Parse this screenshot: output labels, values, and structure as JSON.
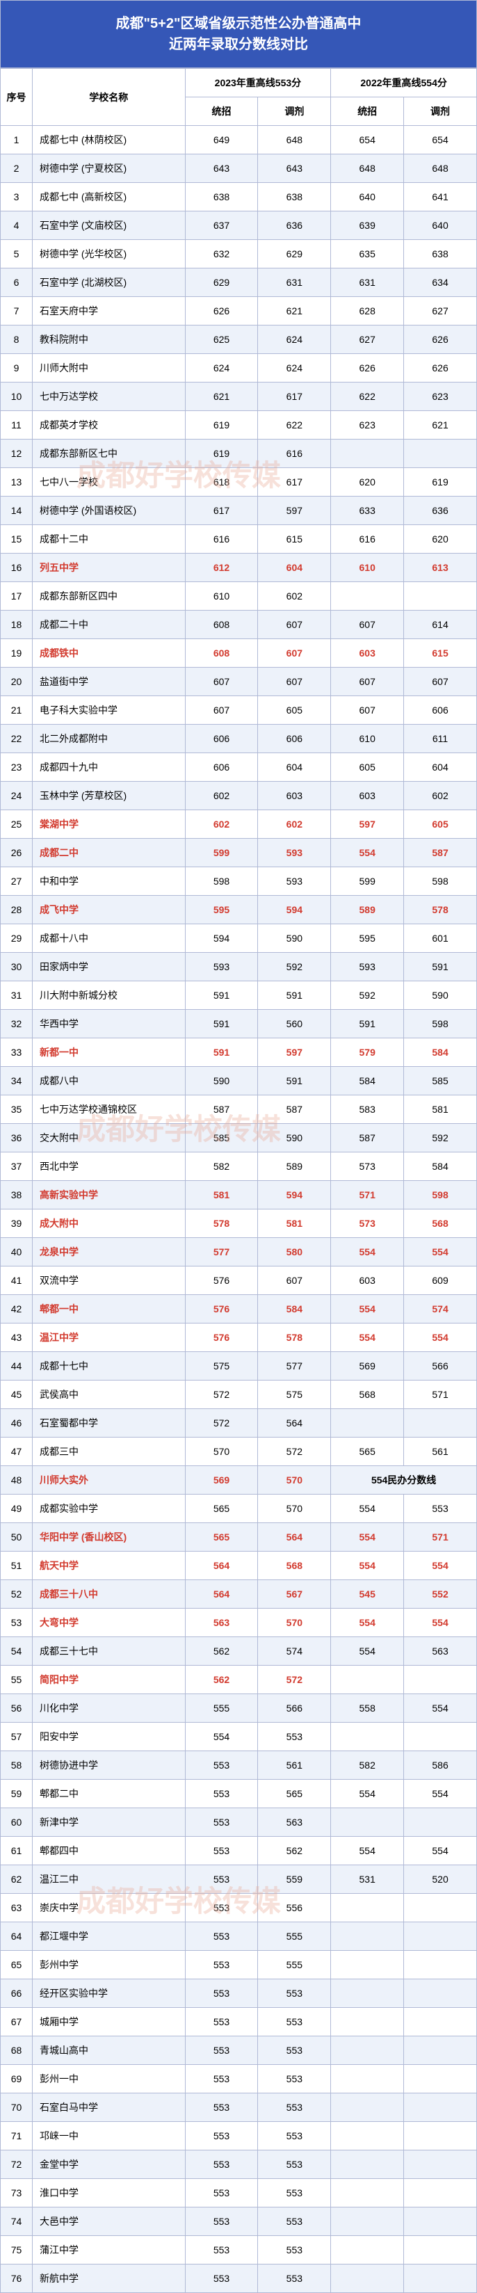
{
  "title_line1": "成都\"5+2\"区域省级示范性公办普通高中",
  "title_line2": "近两年录取分数线对比",
  "headers": {
    "idx": "序号",
    "name": "学校名称",
    "year2023": "2023年重高线553分",
    "year2022": "2022年重高线554分",
    "tongzhao": "统招",
    "tiaoji": "调剂"
  },
  "watermark": "成都好学校传媒",
  "merged_note": "554民办分数线",
  "rows": [
    {
      "i": 1,
      "n": "成都七中 (林荫校区)",
      "a": "649",
      "b": "648",
      "c": "654",
      "d": "654"
    },
    {
      "i": 2,
      "n": "树德中学 (宁夏校区)",
      "a": "643",
      "b": "643",
      "c": "648",
      "d": "648"
    },
    {
      "i": 3,
      "n": "成都七中 (高新校区)",
      "a": "638",
      "b": "638",
      "c": "640",
      "d": "641"
    },
    {
      "i": 4,
      "n": "石室中学 (文庙校区)",
      "a": "637",
      "b": "636",
      "c": "639",
      "d": "640"
    },
    {
      "i": 5,
      "n": "树德中学 (光华校区)",
      "a": "632",
      "b": "629",
      "c": "635",
      "d": "638"
    },
    {
      "i": 6,
      "n": "石室中学 (北湖校区)",
      "a": "629",
      "b": "631",
      "c": "631",
      "d": "634"
    },
    {
      "i": 7,
      "n": "石室天府中学",
      "a": "626",
      "b": "621",
      "c": "628",
      "d": "627"
    },
    {
      "i": 8,
      "n": "教科院附中",
      "a": "625",
      "b": "624",
      "c": "627",
      "d": "626"
    },
    {
      "i": 9,
      "n": "川师大附中",
      "a": "624",
      "b": "624",
      "c": "626",
      "d": "626"
    },
    {
      "i": 10,
      "n": "七中万达学校",
      "a": "621",
      "b": "617",
      "c": "622",
      "d": "623"
    },
    {
      "i": 11,
      "n": "成都英才学校",
      "a": "619",
      "b": "622",
      "c": "623",
      "d": "621"
    },
    {
      "i": 12,
      "n": "成都东部新区七中",
      "a": "619",
      "b": "616",
      "c": "",
      "d": ""
    },
    {
      "i": 13,
      "n": "七中八一学校",
      "a": "618",
      "b": "617",
      "c": "620",
      "d": "619"
    },
    {
      "i": 14,
      "n": "树德中学 (外国语校区)",
      "a": "617",
      "b": "597",
      "c": "633",
      "d": "636"
    },
    {
      "i": 15,
      "n": "成都十二中",
      "a": "616",
      "b": "615",
      "c": "616",
      "d": "620"
    },
    {
      "i": 16,
      "n": "列五中学",
      "a": "612",
      "b": "604",
      "c": "610",
      "d": "613",
      "red": true
    },
    {
      "i": 17,
      "n": "成都东部新区四中",
      "a": "610",
      "b": "602",
      "c": "",
      "d": ""
    },
    {
      "i": 18,
      "n": "成都二十中",
      "a": "608",
      "b": "607",
      "c": "607",
      "d": "614"
    },
    {
      "i": 19,
      "n": "成都铁中",
      "a": "608",
      "b": "607",
      "c": "603",
      "d": "615",
      "red": true
    },
    {
      "i": 20,
      "n": "盐道街中学",
      "a": "607",
      "b": "607",
      "c": "607",
      "d": "607"
    },
    {
      "i": 21,
      "n": "电子科大实验中学",
      "a": "607",
      "b": "605",
      "c": "607",
      "d": "606"
    },
    {
      "i": 22,
      "n": "北二外成都附中",
      "a": "606",
      "b": "606",
      "c": "610",
      "d": "611"
    },
    {
      "i": 23,
      "n": "成都四十九中",
      "a": "606",
      "b": "604",
      "c": "605",
      "d": "604"
    },
    {
      "i": 24,
      "n": "玉林中学 (芳草校区)",
      "a": "602",
      "b": "603",
      "c": "603",
      "d": "602"
    },
    {
      "i": 25,
      "n": "棠湖中学",
      "a": "602",
      "b": "602",
      "c": "597",
      "d": "605",
      "red": true
    },
    {
      "i": 26,
      "n": "成都二中",
      "a": "599",
      "b": "593",
      "c": "554",
      "d": "587",
      "red": true
    },
    {
      "i": 27,
      "n": "中和中学",
      "a": "598",
      "b": "593",
      "c": "599",
      "d": "598"
    },
    {
      "i": 28,
      "n": "成飞中学",
      "a": "595",
      "b": "594",
      "c": "589",
      "d": "578",
      "red": true
    },
    {
      "i": 29,
      "n": "成都十八中",
      "a": "594",
      "b": "590",
      "c": "595",
      "d": "601"
    },
    {
      "i": 30,
      "n": "田家炳中学",
      "a": "593",
      "b": "592",
      "c": "593",
      "d": "591"
    },
    {
      "i": 31,
      "n": "川大附中新城分校",
      "a": "591",
      "b": "591",
      "c": "592",
      "d": "590"
    },
    {
      "i": 32,
      "n": "华西中学",
      "a": "591",
      "b": "560",
      "c": "591",
      "d": "598"
    },
    {
      "i": 33,
      "n": "新都一中",
      "a": "591",
      "b": "597",
      "c": "579",
      "d": "584",
      "red": true
    },
    {
      "i": 34,
      "n": "成都八中",
      "a": "590",
      "b": "591",
      "c": "584",
      "d": "585"
    },
    {
      "i": 35,
      "n": "七中万达学校通锦校区",
      "a": "587",
      "b": "587",
      "c": "583",
      "d": "581"
    },
    {
      "i": 36,
      "n": "交大附中",
      "a": "585",
      "b": "590",
      "c": "587",
      "d": "592"
    },
    {
      "i": 37,
      "n": "西北中学",
      "a": "582",
      "b": "589",
      "c": "573",
      "d": "584"
    },
    {
      "i": 38,
      "n": "高新实验中学",
      "a": "581",
      "b": "594",
      "c": "571",
      "d": "598",
      "red": true
    },
    {
      "i": 39,
      "n": "成大附中",
      "a": "578",
      "b": "581",
      "c": "573",
      "d": "568",
      "red": true
    },
    {
      "i": 40,
      "n": "龙泉中学",
      "a": "577",
      "b": "580",
      "c": "554",
      "d": "554",
      "red": true
    },
    {
      "i": 41,
      "n": "双流中学",
      "a": "576",
      "b": "607",
      "c": "603",
      "d": "609"
    },
    {
      "i": 42,
      "n": "郫都一中",
      "a": "576",
      "b": "584",
      "c": "554",
      "d": "574",
      "red": true
    },
    {
      "i": 43,
      "n": "温江中学",
      "a": "576",
      "b": "578",
      "c": "554",
      "d": "554",
      "red": true
    },
    {
      "i": 44,
      "n": "成都十七中",
      "a": "575",
      "b": "577",
      "c": "569",
      "d": "566"
    },
    {
      "i": 45,
      "n": "武侯高中",
      "a": "572",
      "b": "575",
      "c": "568",
      "d": "571"
    },
    {
      "i": 46,
      "n": "石室蜀都中学",
      "a": "572",
      "b": "564",
      "c": "",
      "d": ""
    },
    {
      "i": 47,
      "n": "成都三中",
      "a": "570",
      "b": "572",
      "c": "565",
      "d": "561"
    },
    {
      "i": 48,
      "n": "川师大实外",
      "a": "569",
      "b": "570",
      "red": true,
      "mergedNote": true
    },
    {
      "i": 49,
      "n": "成都实验中学",
      "a": "565",
      "b": "570",
      "c": "554",
      "d": "553"
    },
    {
      "i": 50,
      "n": "华阳中学 (香山校区)",
      "a": "565",
      "b": "564",
      "c": "554",
      "d": "571",
      "red": true
    },
    {
      "i": 51,
      "n": "航天中学",
      "a": "564",
      "b": "568",
      "c": "554",
      "d": "554",
      "red": true
    },
    {
      "i": 52,
      "n": "成都三十八中",
      "a": "564",
      "b": "567",
      "c": "545",
      "d": "552",
      "red": true
    },
    {
      "i": 53,
      "n": "大弯中学",
      "a": "563",
      "b": "570",
      "c": "554",
      "d": "554",
      "red": true
    },
    {
      "i": 54,
      "n": "成都三十七中",
      "a": "562",
      "b": "574",
      "c": "554",
      "d": "563"
    },
    {
      "i": 55,
      "n": "简阳中学",
      "a": "562",
      "b": "572",
      "red": true
    },
    {
      "i": 56,
      "n": "川化中学",
      "a": "555",
      "b": "566",
      "c": "558",
      "d": "554"
    },
    {
      "i": 57,
      "n": "阳安中学",
      "a": "554",
      "b": "553",
      "c": "",
      "d": ""
    },
    {
      "i": 58,
      "n": "树德协进中学",
      "a": "553",
      "b": "561",
      "c": "582",
      "d": "586"
    },
    {
      "i": 59,
      "n": "郫都二中",
      "a": "553",
      "b": "565",
      "c": "554",
      "d": "554"
    },
    {
      "i": 60,
      "n": "新津中学",
      "a": "553",
      "b": "563",
      "c": "",
      "d": ""
    },
    {
      "i": 61,
      "n": "郫都四中",
      "a": "553",
      "b": "562",
      "c": "554",
      "d": "554"
    },
    {
      "i": 62,
      "n": "温江二中",
      "a": "553",
      "b": "559",
      "c": "531",
      "d": "520"
    },
    {
      "i": 63,
      "n": "崇庆中学",
      "a": "553",
      "b": "556",
      "c": "",
      "d": ""
    },
    {
      "i": 64,
      "n": "都江堰中学",
      "a": "553",
      "b": "555",
      "c": "",
      "d": ""
    },
    {
      "i": 65,
      "n": "彭州中学",
      "a": "553",
      "b": "555",
      "c": "",
      "d": ""
    },
    {
      "i": 66,
      "n": "经开区实验中学",
      "a": "553",
      "b": "553",
      "c": "",
      "d": ""
    },
    {
      "i": 67,
      "n": "城厢中学",
      "a": "553",
      "b": "553",
      "c": "",
      "d": ""
    },
    {
      "i": 68,
      "n": "青城山高中",
      "a": "553",
      "b": "553",
      "c": "",
      "d": ""
    },
    {
      "i": 69,
      "n": "彭州一中",
      "a": "553",
      "b": "553",
      "c": "",
      "d": ""
    },
    {
      "i": 70,
      "n": "石室白马中学",
      "a": "553",
      "b": "553",
      "c": "",
      "d": ""
    },
    {
      "i": 71,
      "n": "邛崃一中",
      "a": "553",
      "b": "553",
      "c": "",
      "d": ""
    },
    {
      "i": 72,
      "n": "金堂中学",
      "a": "553",
      "b": "553",
      "c": "",
      "d": ""
    },
    {
      "i": 73,
      "n": "淮口中学",
      "a": "553",
      "b": "553",
      "c": "",
      "d": ""
    },
    {
      "i": 74,
      "n": "大邑中学",
      "a": "553",
      "b": "553",
      "c": "",
      "d": ""
    },
    {
      "i": 75,
      "n": "蒲江中学",
      "a": "553",
      "b": "553",
      "c": "",
      "d": ""
    },
    {
      "i": 76,
      "n": "新航中学",
      "a": "553",
      "b": "553",
      "c": "",
      "d": ""
    }
  ]
}
